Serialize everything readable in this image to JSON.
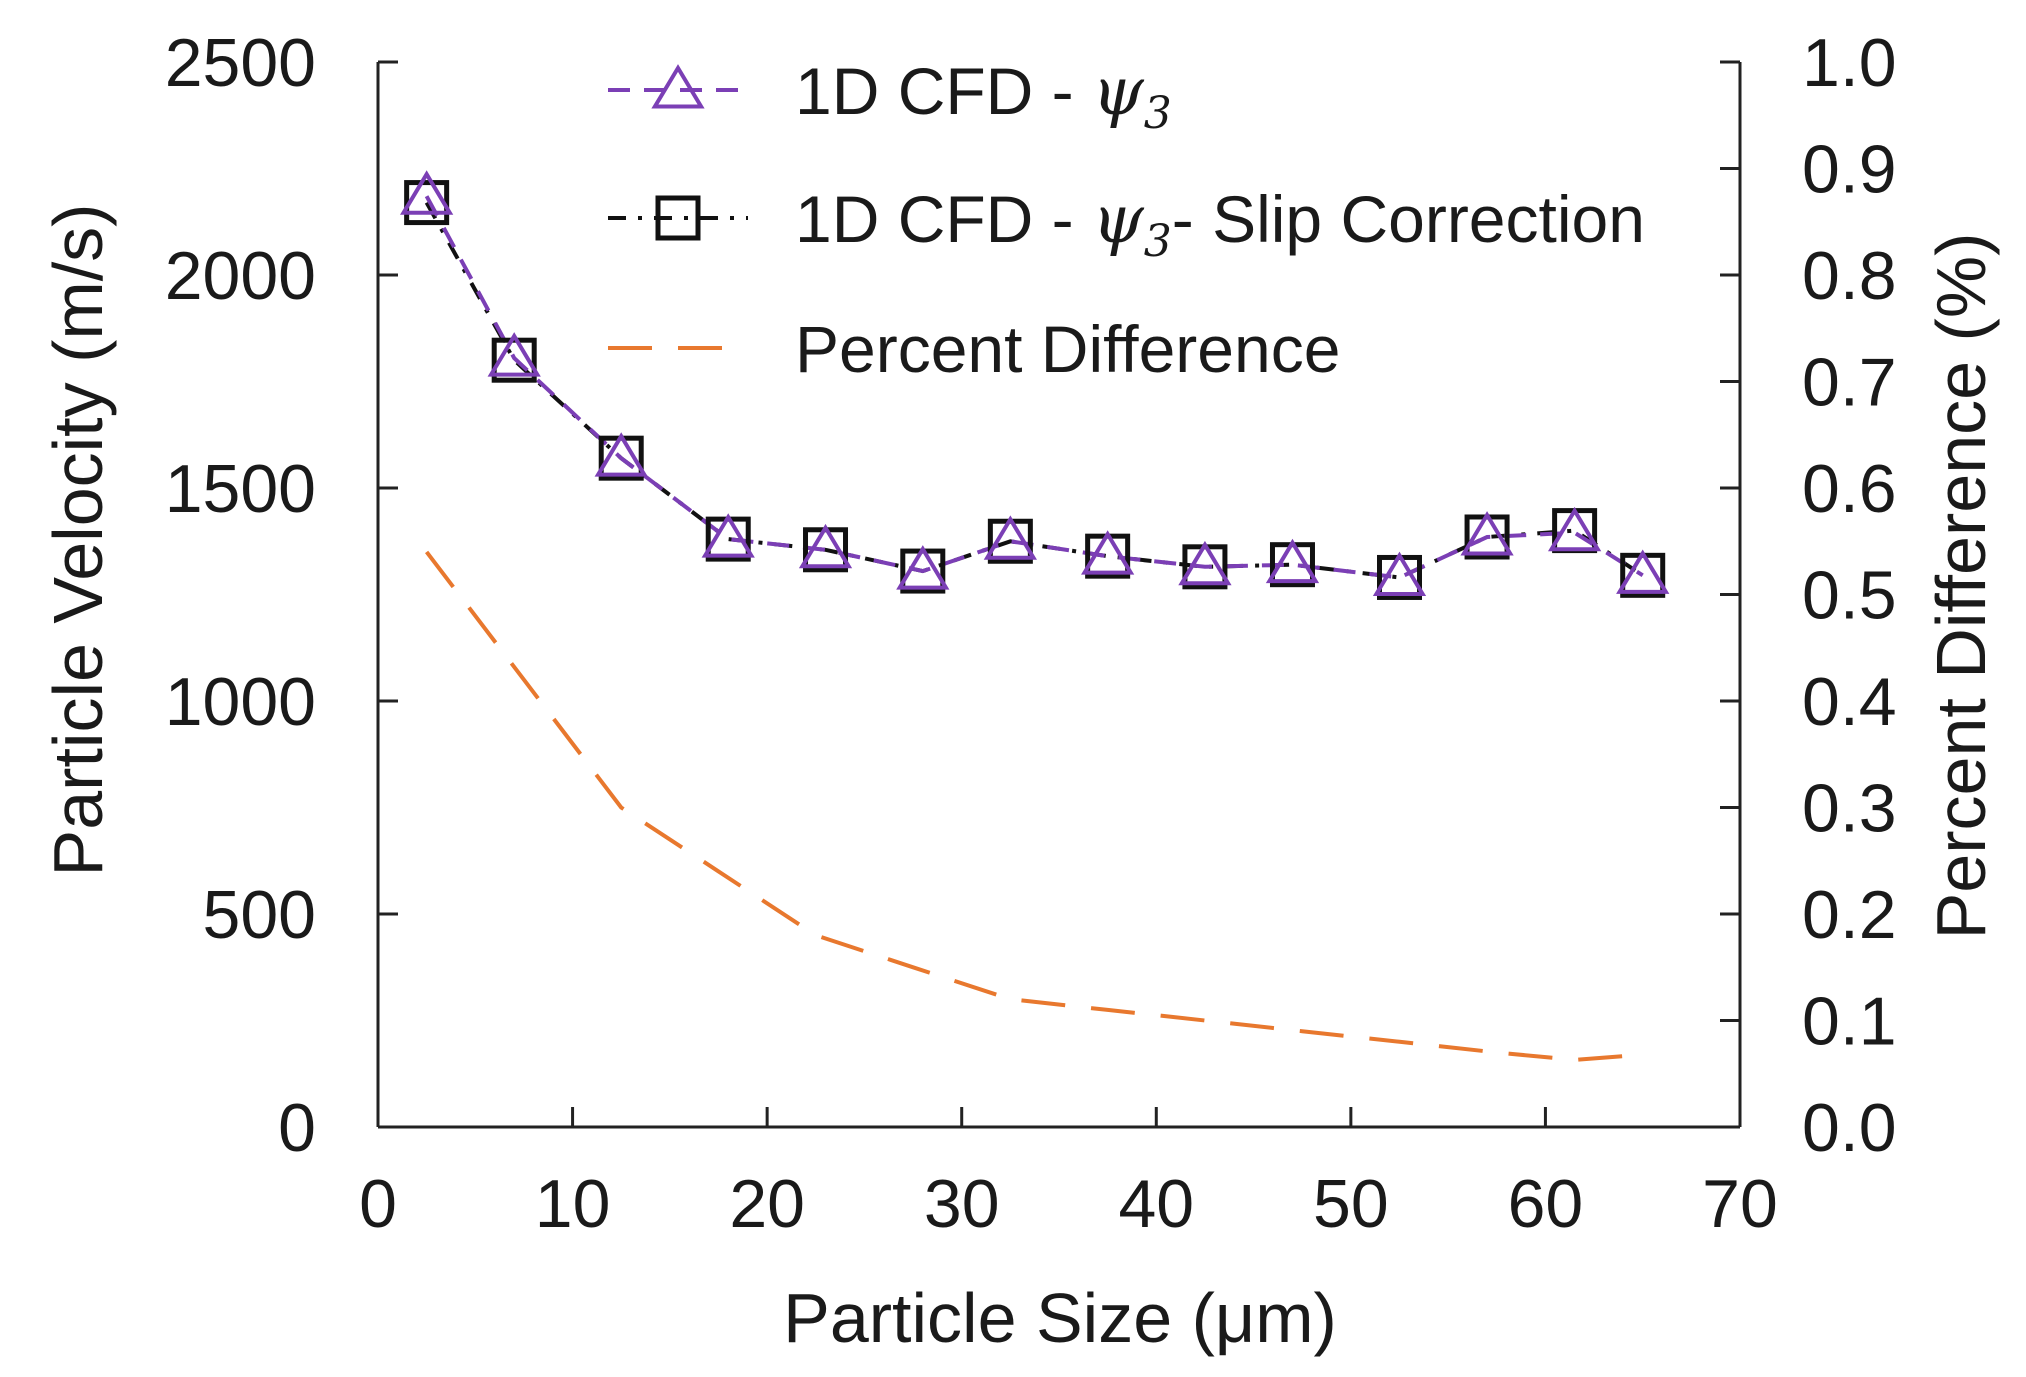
{
  "chart_data": {
    "type": "line",
    "xlabel": "Particle Size (μm)",
    "ylabel": "Particle Velocity (m/s)",
    "y2label": "Percent Difference (%)",
    "xlim": [
      0,
      70
    ],
    "ylim": [
      0,
      2500
    ],
    "y2lim": [
      0.0,
      1.0
    ],
    "xticks": [
      "0",
      "10",
      "20",
      "30",
      "40",
      "50",
      "60",
      "70"
    ],
    "yticks": [
      "0",
      "500",
      "1000",
      "1500",
      "2000",
      "2500"
    ],
    "y2ticks": [
      "0.0",
      "0.1",
      "0.2",
      "0.3",
      "0.4",
      "0.5",
      "0.6",
      "0.7",
      "0.8",
      "0.9",
      "1.0"
    ],
    "grid": false,
    "legend_position": "top-center",
    "x": [
      2.5,
      7,
      12.5,
      18,
      23,
      28,
      32.5,
      37.5,
      42.5,
      47,
      52.5,
      57,
      61.5,
      65
    ],
    "series": [
      {
        "name": "1D CFD - ",
        "name_sub": "ψ",
        "name_subscript": "3",
        "name_suffix": "",
        "axis": "left",
        "marker": "triangle",
        "color": "#7b3fb5",
        "values": [
          2185,
          1805,
          1570,
          1380,
          1355,
          1305,
          1375,
          1340,
          1315,
          1320,
          1290,
          1385,
          1395,
          1295
        ]
      },
      {
        "name": "1D CFD - ",
        "name_sub": "ψ",
        "name_subscript": "3",
        "name_suffix": "- Slip Correction",
        "axis": "left",
        "marker": "square",
        "color": "#111111",
        "values": [
          2170,
          1800,
          1570,
          1380,
          1355,
          1305,
          1375,
          1340,
          1315,
          1320,
          1290,
          1385,
          1400,
          1295
        ]
      },
      {
        "name": "Percent Difference",
        "axis": "right",
        "marker": "none",
        "color": "#e8782e",
        "x": [
          2.5,
          7.5,
          12.5,
          17.5,
          22.5,
          27.5,
          32.5,
          37.5,
          42.5,
          47.5,
          52.5,
          57.5,
          61.5,
          65
        ],
        "values": [
          0.54,
          0.42,
          0.3,
          0.24,
          0.18,
          0.15,
          0.12,
          0.11,
          0.1,
          0.09,
          0.08,
          0.07,
          0.063,
          0.068
        ]
      }
    ]
  }
}
